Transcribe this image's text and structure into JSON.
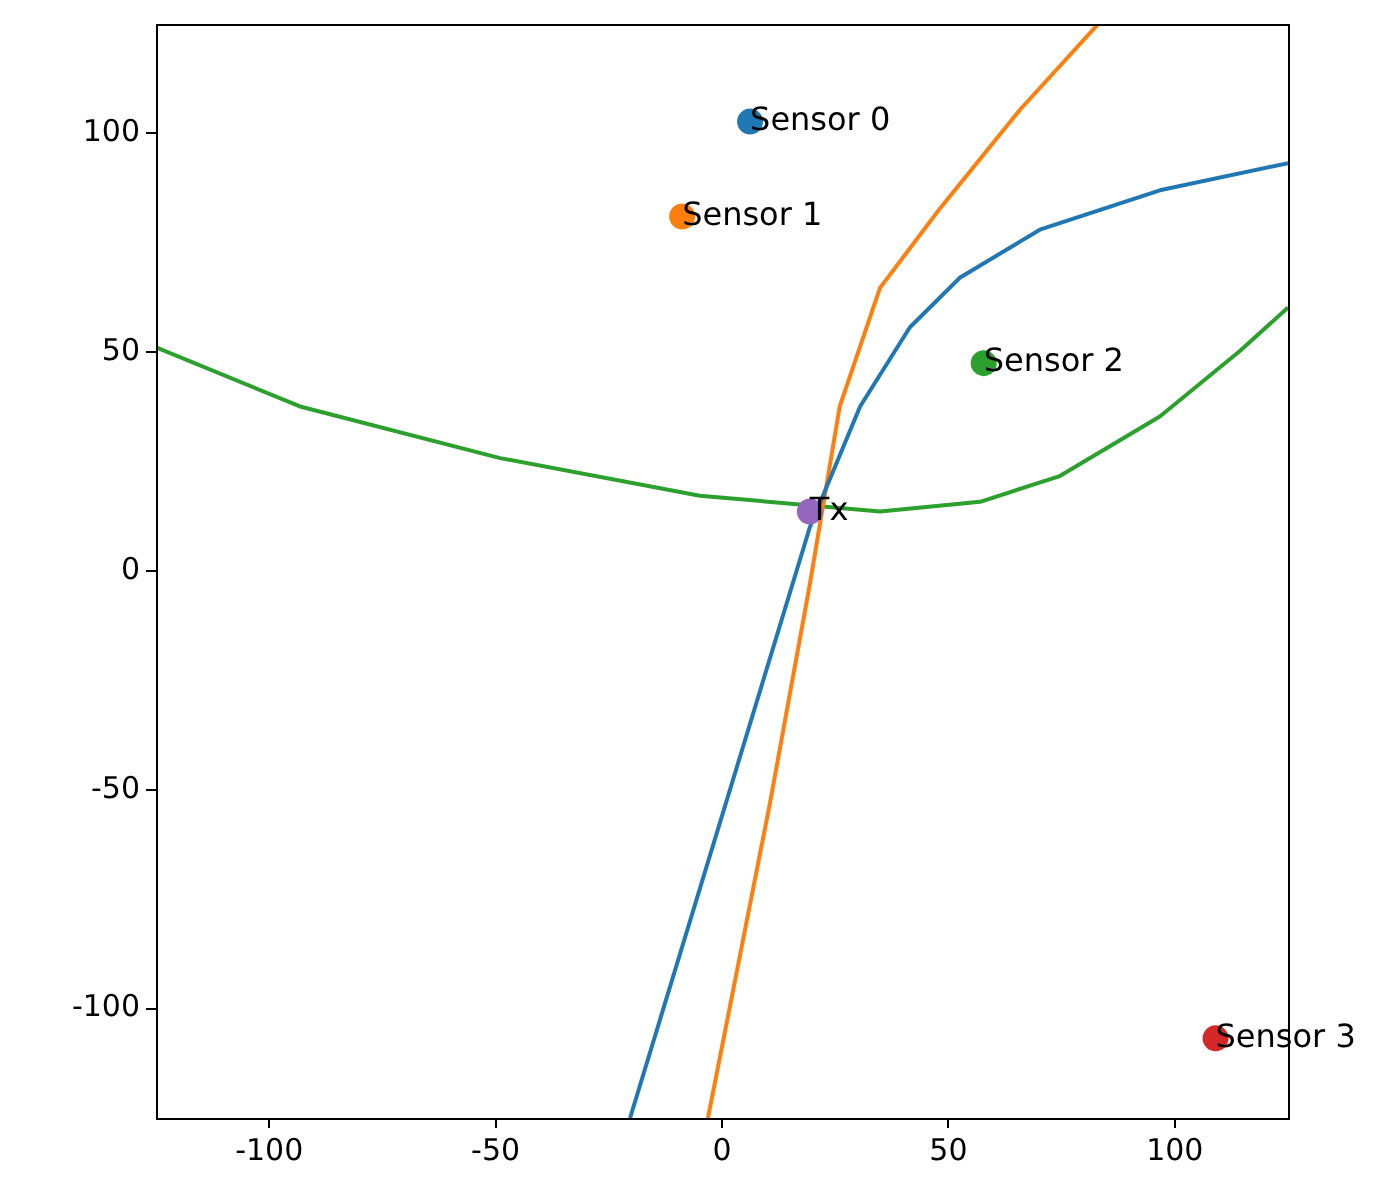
{
  "chart_data": {
    "type": "line",
    "xlim": [
      -125,
      125
    ],
    "ylim": [
      -125,
      125
    ],
    "xticks": [
      -100,
      -50,
      0,
      50,
      100
    ],
    "yticks": [
      -100,
      -50,
      0,
      50,
      100
    ],
    "grid": false,
    "legend": false,
    "series": [
      {
        "color": "#1f77b4",
        "marker": "none",
        "x": [
          -20.3,
          19.4,
          30.5,
          41.5,
          52.5,
          70.2,
          96.7,
          125
        ],
        "values": [
          -125,
          10,
          37.6,
          55.7,
          67,
          78,
          87,
          93.2
        ]
      },
      {
        "color": "#ff7f0e",
        "marker": "none",
        "x": [
          -3.1,
          10.6,
          19.4,
          26,
          34.9,
          48.1,
          65.8,
          83
        ],
        "values": [
          -125,
          -53,
          -3,
          37.6,
          64.7,
          82.8,
          105.4,
          124.9
        ]
      },
      {
        "color": "#2ca02c",
        "marker": "none",
        "x": [
          -125,
          -93.2,
          -49,
          -4.9,
          34.9,
          57,
          74.6,
          96.7,
          114.3,
          125
        ],
        "values": [
          51.1,
          37.6,
          25.8,
          17.2,
          13.6,
          15.8,
          21.7,
          35.3,
          50.2,
          60.2
        ]
      },
      {
        "type": "scatter",
        "name": "Sensor 0",
        "color": "#1f77b4",
        "marker": "circle",
        "x": [
          6.2
        ],
        "values": [
          102.7
        ]
      },
      {
        "type": "scatter",
        "name": "Sensor 1",
        "color": "#ff7f0e",
        "marker": "circle",
        "x": [
          -8.8
        ],
        "values": [
          81
        ]
      },
      {
        "type": "scatter",
        "name": "Sensor 2",
        "color": "#2ca02c",
        "marker": "circle",
        "x": [
          57.8
        ],
        "values": [
          47.5
        ]
      },
      {
        "type": "scatter",
        "name": "Sensor 3",
        "color": "#d62728",
        "marker": "circle",
        "x": [
          109
        ],
        "values": [
          -106.8
        ]
      },
      {
        "type": "scatter",
        "name": "Tx",
        "color": "#9467bd",
        "marker": "circle",
        "x": [
          19.4
        ],
        "values": [
          13.6
        ]
      }
    ]
  }
}
